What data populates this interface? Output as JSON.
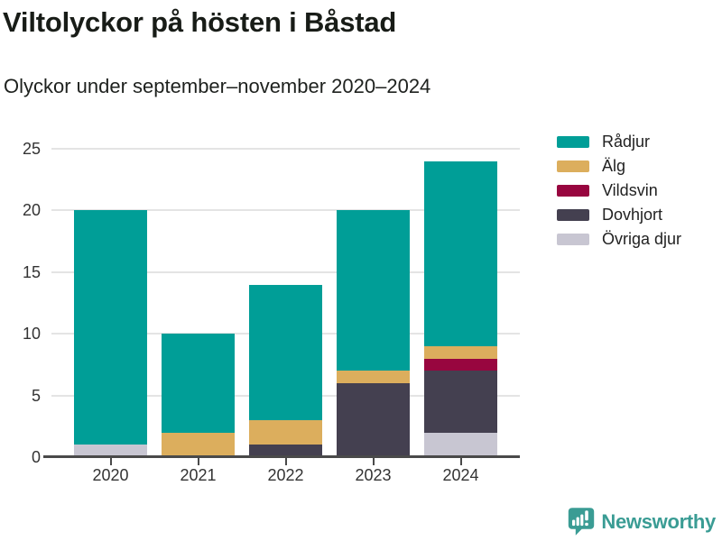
{
  "chart_data": {
    "type": "bar",
    "stacked": true,
    "title": "Viltolyckor på hösten i Båstad",
    "subtitle": "Olyckor under september–november 2020–2024",
    "categories": [
      "2020",
      "2021",
      "2022",
      "2023",
      "2024"
    ],
    "series": [
      {
        "name": "Rådjur",
        "color": "#009E97",
        "values": [
          19,
          8,
          11,
          13,
          15
        ]
      },
      {
        "name": "Älg",
        "color": "#DCAE5D",
        "values": [
          0,
          2,
          2,
          1,
          1
        ]
      },
      {
        "name": "Vildsvin",
        "color": "#98063F",
        "values": [
          0,
          0,
          0,
          0,
          1
        ]
      },
      {
        "name": "Dovhjort",
        "color": "#444050",
        "values": [
          0,
          0,
          1,
          6,
          5
        ]
      },
      {
        "name": "Övriga djur",
        "color": "#C8C6D2",
        "values": [
          1,
          0,
          0,
          0,
          2
        ]
      }
    ],
    "ylim": [
      0,
      25
    ],
    "yticks": [
      0,
      5,
      10,
      15,
      20,
      25
    ],
    "xlabel": "",
    "ylabel": "",
    "grid": true,
    "grid_color": "#E4E4E4",
    "axis_color": "#4A4A4A",
    "legend_position": "right"
  },
  "footer": {
    "brand": "Newsworthy",
    "brand_color": "#3A9C94"
  }
}
